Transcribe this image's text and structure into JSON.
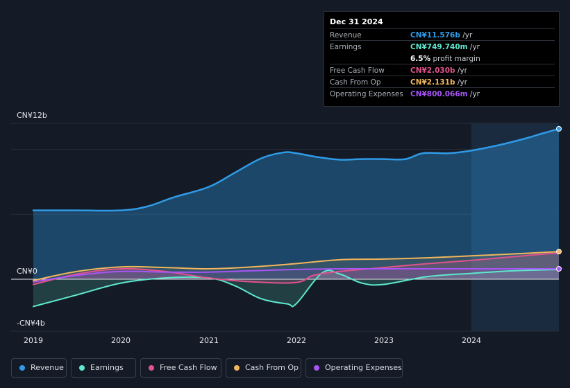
{
  "tooltip": {
    "date": "Dec 31 2024",
    "rows": [
      {
        "label": "Revenue",
        "value": "CN¥11.576b",
        "unit": "/yr",
        "color": "#2f9be8"
      },
      {
        "label": "Earnings",
        "value": "CN¥749.740m",
        "unit": "/yr",
        "color": "#5ee8cf"
      },
      {
        "label": "Free Cash Flow",
        "value": "CN¥2.030b",
        "unit": "/yr",
        "color": "#e0538c"
      },
      {
        "label": "Cash From Op",
        "value": "CN¥2.131b",
        "unit": "/yr",
        "color": "#f2b65c"
      },
      {
        "label": "Operating Expenses",
        "value": "CN¥800.066m",
        "unit": "/yr",
        "color": "#a855f7"
      }
    ],
    "margin_value": "6.5%",
    "margin_text": "profit margin"
  },
  "legend": [
    {
      "label": "Revenue",
      "color": "#2f9be8"
    },
    {
      "label": "Earnings",
      "color": "#5ee8cf"
    },
    {
      "label": "Free Cash Flow",
      "color": "#e0538c"
    },
    {
      "label": "Cash From Op",
      "color": "#f2b65c"
    },
    {
      "label": "Operating Expenses",
      "color": "#a855f7"
    }
  ],
  "chart_data": {
    "type": "area",
    "ylim": [
      -4,
      12
    ],
    "y_tick_labels": [
      "CN¥12b",
      "CN¥0",
      "-CN¥4b"
    ],
    "x_tick_labels": [
      "2019",
      "2020",
      "2021",
      "2022",
      "2023",
      "2024"
    ],
    "highlight_start": 2024.0,
    "series": [
      {
        "name": "Revenue",
        "color": "#2f9be8",
        "x": [
          2019.0,
          2019.5,
          2020.0,
          2020.3,
          2020.6,
          2021.0,
          2021.3,
          2021.6,
          2021.85,
          2022.0,
          2022.25,
          2022.5,
          2022.75,
          2023.0,
          2023.25,
          2023.45,
          2023.75,
          2024.0,
          2024.3,
          2024.6,
          2024.8,
          2025.0
        ],
        "values": [
          5.3,
          5.3,
          5.3,
          5.6,
          6.3,
          7.1,
          8.2,
          9.3,
          9.75,
          9.7,
          9.4,
          9.2,
          9.25,
          9.25,
          9.25,
          9.7,
          9.7,
          9.9,
          10.3,
          10.8,
          11.2,
          11.58
        ]
      },
      {
        "name": "Earnings",
        "color": "#5ee8cf",
        "x": [
          2019.0,
          2019.5,
          2020.0,
          2020.5,
          2021.0,
          2021.3,
          2021.6,
          2021.9,
          2022.0,
          2022.3,
          2022.5,
          2022.75,
          2023.0,
          2023.5,
          2024.0,
          2024.5,
          2025.0
        ],
        "values": [
          -2.1,
          -1.2,
          -0.3,
          0.1,
          0.1,
          -0.5,
          -1.5,
          -1.9,
          -1.9,
          0.5,
          0.4,
          -0.3,
          -0.4,
          0.2,
          0.45,
          0.65,
          0.75
        ]
      },
      {
        "name": "Free Cash Flow",
        "color": "#e0538c",
        "x": [
          2019.0,
          2019.5,
          2020.0,
          2020.5,
          2021.0,
          2021.5,
          2022.0,
          2022.2,
          2022.5,
          2023.0,
          2023.5,
          2024.0,
          2024.5,
          2025.0
        ],
        "values": [
          -0.4,
          0.4,
          0.8,
          0.6,
          0.1,
          -0.2,
          -0.25,
          0.3,
          0.6,
          0.9,
          1.2,
          1.45,
          1.75,
          2.03
        ]
      },
      {
        "name": "Cash From Op",
        "color": "#f2b65c",
        "x": [
          2019.0,
          2019.5,
          2020.0,
          2020.5,
          2021.0,
          2021.5,
          2022.0,
          2022.5,
          2023.0,
          2023.5,
          2024.0,
          2024.5,
          2025.0
        ],
        "values": [
          -0.1,
          0.6,
          0.95,
          0.9,
          0.8,
          0.95,
          1.2,
          1.5,
          1.55,
          1.65,
          1.8,
          1.95,
          2.13
        ]
      },
      {
        "name": "Operating Expenses",
        "color": "#a855f7",
        "x": [
          2019.0,
          2019.5,
          2020.0,
          2020.5,
          2021.0,
          2021.5,
          2022.0,
          2022.5,
          2023.0,
          2023.5,
          2024.0,
          2024.5,
          2025.0
        ],
        "values": [
          -0.2,
          0.3,
          0.6,
          0.55,
          0.55,
          0.65,
          0.75,
          0.8,
          0.8,
          0.8,
          0.8,
          0.8,
          0.8
        ]
      }
    ]
  }
}
